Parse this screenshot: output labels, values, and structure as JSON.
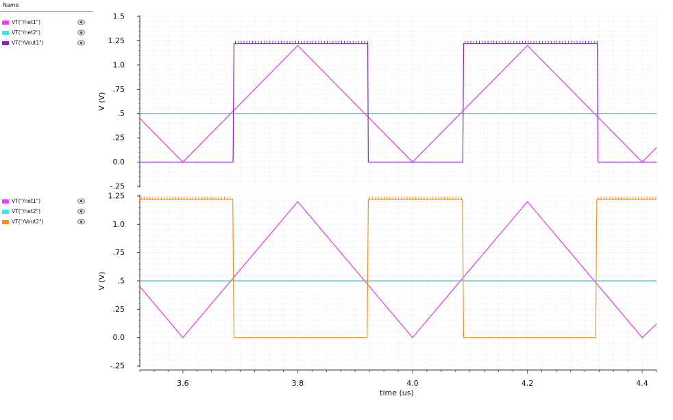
{
  "legend_header": "Name",
  "chart_data": [
    {
      "type": "line",
      "ylabel": "V (V)",
      "ylim": [
        -0.25,
        1.5
      ],
      "yticks": [
        -0.25,
        0.0,
        0.25,
        0.5,
        0.75,
        1.0,
        1.25,
        1.5
      ],
      "ytick_labels": [
        "-.25",
        "0.0",
        ".25",
        ".5",
        ".75",
        "1.0",
        "1.25",
        "1.5"
      ],
      "xlim": [
        3.525,
        4.425
      ],
      "grid": true,
      "legend": [
        {
          "name": "VT(\"/net1\")",
          "color": "#ff33ff"
        },
        {
          "name": "VT(\"/net2\")",
          "color": "#33e6e6"
        },
        {
          "name": "VT(\"/Vout1\")",
          "color": "#8822cc"
        }
      ],
      "series": [
        {
          "name": "VT(\"/net1\")",
          "color": "#ee33ee",
          "x": [
            3.525,
            3.6,
            3.8,
            4.0,
            4.2,
            4.4,
            4.425
          ],
          "y": [
            0.45,
            0.0,
            1.2,
            0.0,
            1.2,
            0.0,
            0.15
          ]
        },
        {
          "name": "VT(\"/net2\")",
          "color": "#33cccc",
          "x": [
            3.525,
            4.425
          ],
          "y": [
            0.5,
            0.5
          ]
        },
        {
          "name": "VT(\"/Vout1\")",
          "color": "#8822cc",
          "x": [
            3.525,
            3.6875,
            3.689,
            3.922,
            3.923,
            4.0875,
            4.089,
            4.322,
            4.323,
            4.425
          ],
          "y": [
            0.0,
            0.0,
            1.22,
            1.22,
            0.0,
            0.0,
            1.22,
            1.22,
            0.0,
            0.0
          ]
        }
      ]
    },
    {
      "type": "line",
      "ylabel": "V (V)",
      "xlabel": "time (us)",
      "ylim": [
        -0.25,
        1.25
      ],
      "yticks": [
        -0.25,
        0.0,
        0.25,
        0.5,
        0.75,
        1.0,
        1.25
      ],
      "ytick_labels": [
        "-.25",
        "0.0",
        ".25",
        ".5",
        ".75",
        "1.0",
        "1.25"
      ],
      "xlim": [
        3.525,
        4.425
      ],
      "xticks": [
        3.6,
        3.8,
        4.0,
        4.2,
        4.4
      ],
      "xtick_labels": [
        "3.6",
        "3.8",
        "4.0",
        "4.2",
        "4.4"
      ],
      "grid": true,
      "legend": [
        {
          "name": "VT(\"/net1\")",
          "color": "#ff33ff"
        },
        {
          "name": "VT(\"/net2\")",
          "color": "#33e6e6"
        },
        {
          "name": "VT(\"/Vout2\")",
          "color": "#ff8c1a"
        }
      ],
      "series": [
        {
          "name": "VT(\"/net1\")",
          "color": "#ee33ee",
          "x": [
            3.525,
            3.6,
            3.8,
            4.0,
            4.2,
            4.4,
            4.425
          ],
          "y": [
            0.45,
            0.0,
            1.2,
            0.0,
            1.2,
            0.0,
            0.12
          ]
        },
        {
          "name": "VT(\"/net2\")",
          "color": "#33cccc",
          "x": [
            3.525,
            4.425
          ],
          "y": [
            0.5,
            0.5
          ]
        },
        {
          "name": "VT(\"/Vout2\")",
          "color": "#f5901e",
          "x": [
            3.525,
            3.687,
            3.689,
            3.921,
            3.923,
            4.087,
            4.089,
            4.319,
            4.321,
            4.425
          ],
          "y": [
            1.22,
            1.22,
            0.0,
            0.0,
            1.22,
            1.22,
            0.0,
            0.0,
            1.22,
            1.22
          ]
        }
      ]
    }
  ]
}
